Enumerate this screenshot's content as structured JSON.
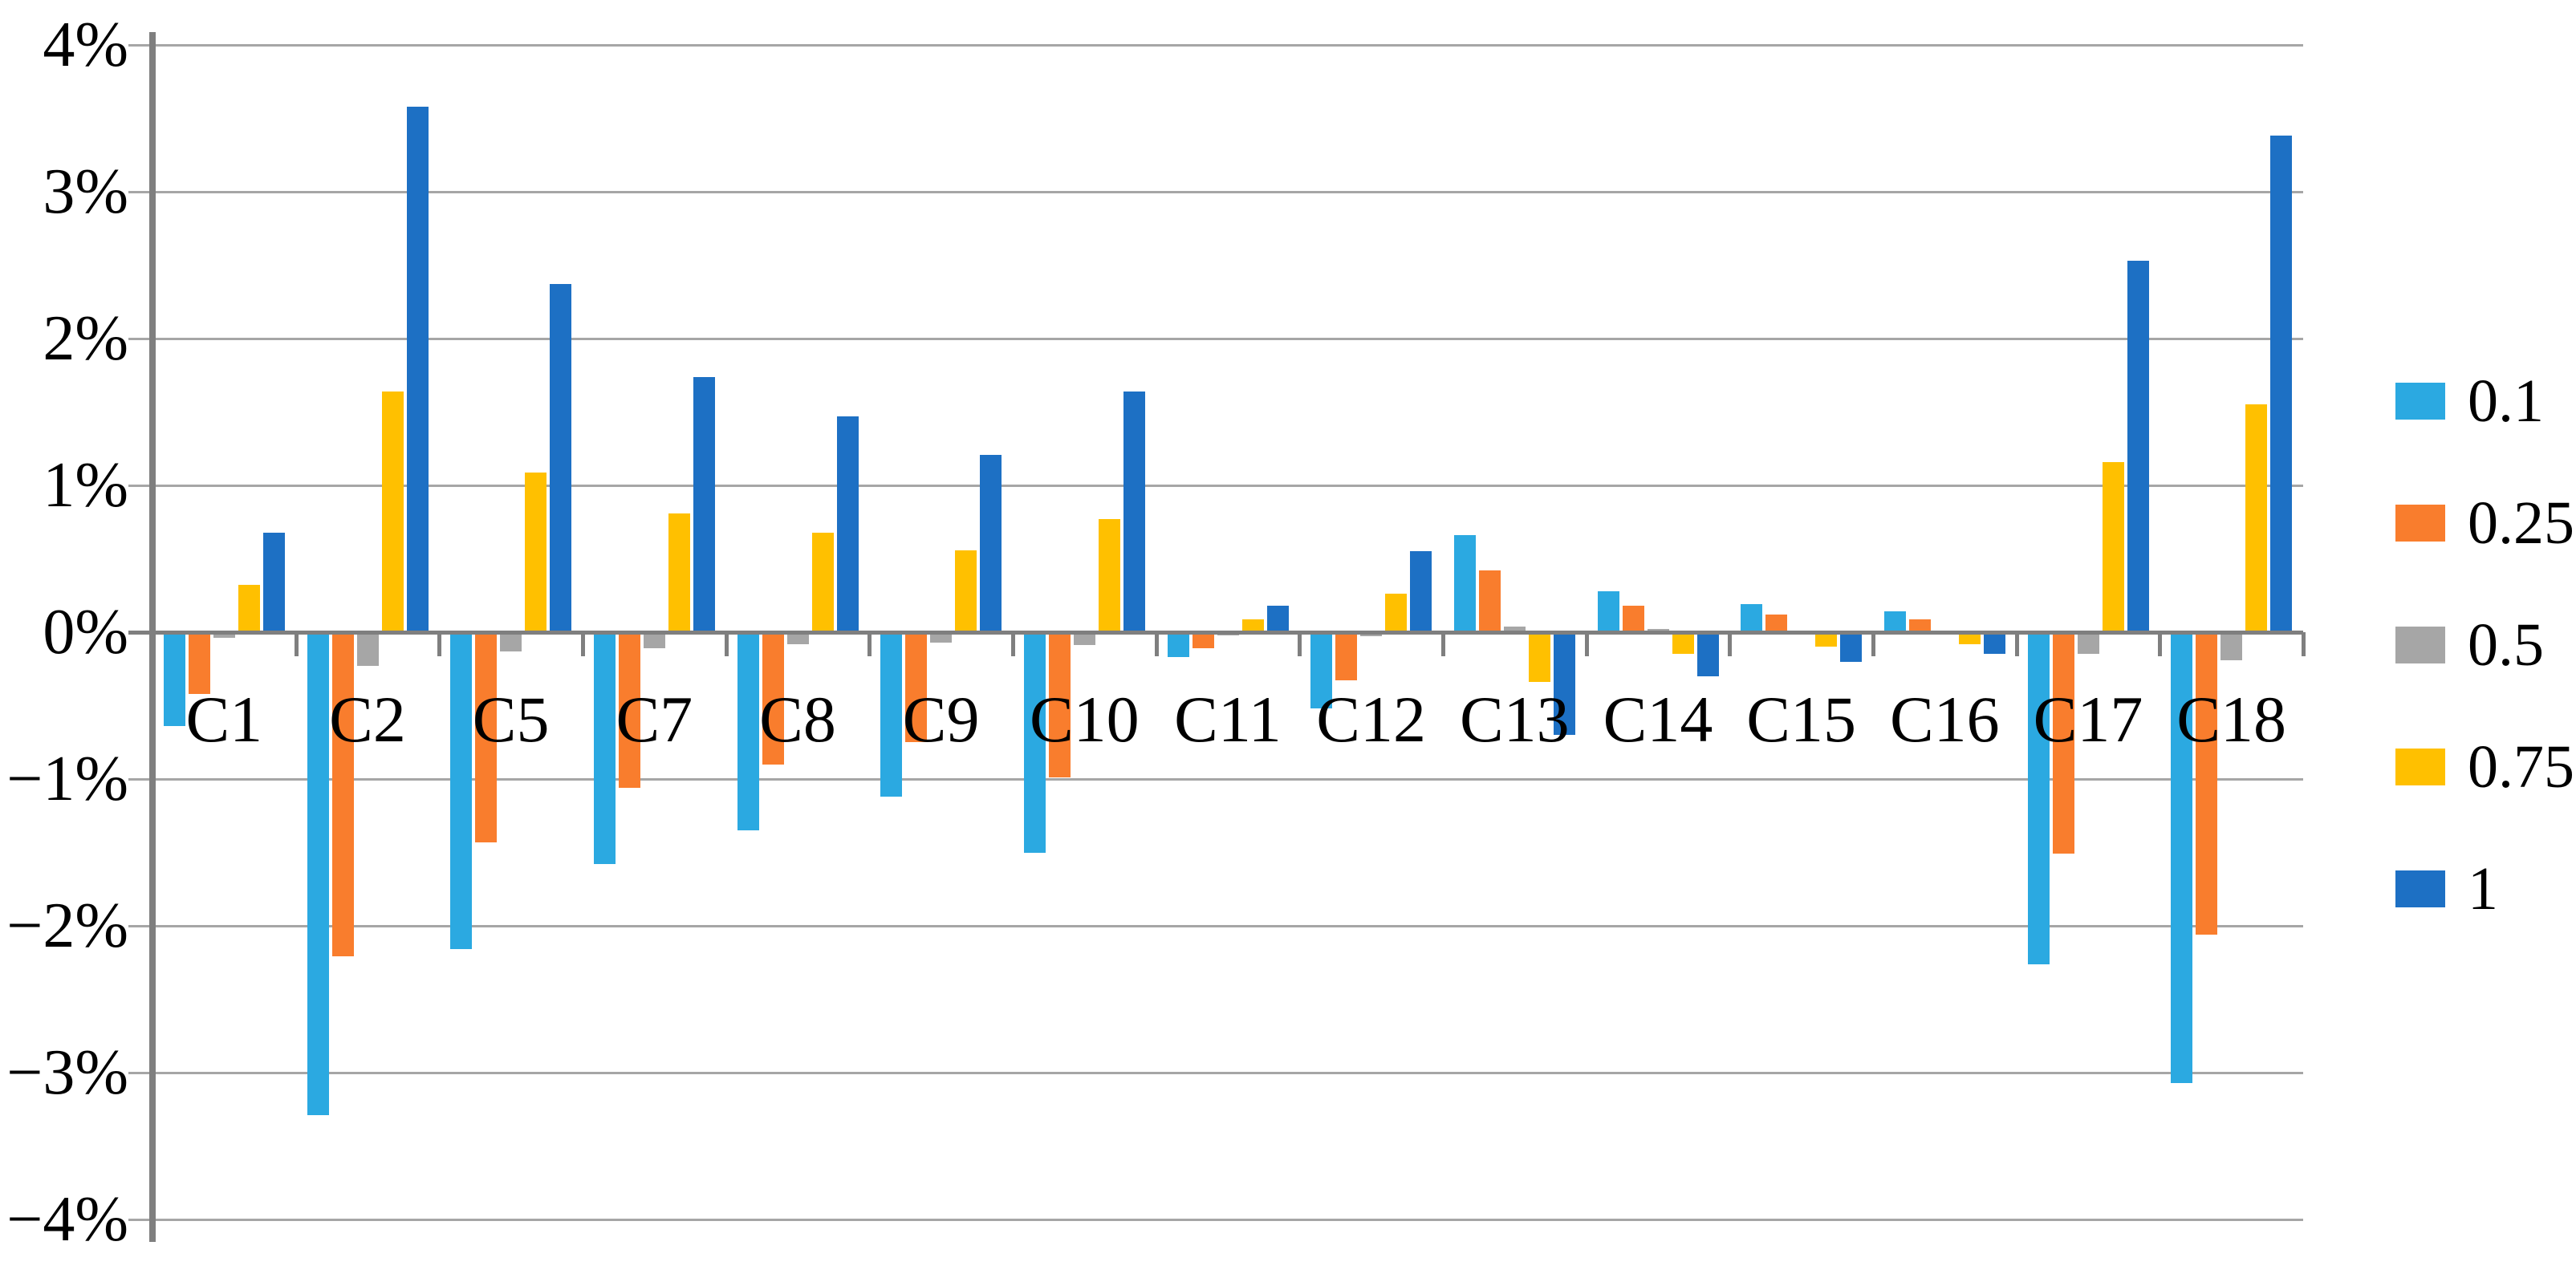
{
  "chart_data": {
    "type": "bar",
    "title": "",
    "xlabel": "",
    "ylabel": "",
    "categories": [
      "C1",
      "C2",
      "C5",
      "C7",
      "C8",
      "C9",
      "C10",
      "C11",
      "C12",
      "C13",
      "C14",
      "C15",
      "C16",
      "C17",
      "C18"
    ],
    "series": [
      {
        "name": "0.1",
        "color": "#2BA9E1",
        "values": [
          -0.64,
          -3.29,
          -2.16,
          -1.58,
          -1.35,
          -1.12,
          -1.5,
          -0.17,
          -0.52,
          0.66,
          0.28,
          0.19,
          0.14,
          -2.26,
          -3.07
        ]
      },
      {
        "name": "0.25",
        "color": "#F97D2D",
        "values": [
          -0.42,
          -2.21,
          -1.43,
          -1.06,
          -0.9,
          -0.75,
          -0.99,
          -0.11,
          -0.33,
          0.42,
          0.18,
          0.12,
          0.09,
          -1.51,
          -2.06
        ]
      },
      {
        "name": "0.5",
        "color": "#A6A6A6",
        "values": [
          -0.04,
          -0.23,
          -0.13,
          -0.11,
          -0.08,
          -0.07,
          -0.09,
          -0.02,
          -0.03,
          0.04,
          0.02,
          0.01,
          0.01,
          -0.15,
          -0.19
        ]
      },
      {
        "name": "0.75",
        "color": "#FFC000",
        "values": [
          0.32,
          1.64,
          1.09,
          0.81,
          0.68,
          0.56,
          0.77,
          0.09,
          0.26,
          -0.34,
          -0.15,
          -0.1,
          -0.08,
          1.16,
          1.55
        ]
      },
      {
        "name": "1",
        "color": "#1D70C4",
        "values": [
          0.68,
          3.58,
          2.37,
          1.74,
          1.47,
          1.21,
          1.64,
          0.18,
          0.55,
          -0.7,
          -0.3,
          -0.2,
          -0.15,
          2.53,
          3.38
        ]
      }
    ],
    "y_tick_labels": [
      "4%",
      "3%",
      "2%",
      "1%",
      "0%",
      "−1%",
      "−2%",
      "−3%",
      "−4%"
    ],
    "ylim": [
      -4,
      4
    ],
    "grid": true,
    "legend_position": "right",
    "legend_labels": [
      "0.1",
      "0.25",
      "0.5",
      "0.75",
      "1"
    ]
  },
  "style_colors": {
    "gridline": "#a6a6a6",
    "axis": "#7f7f7f",
    "background": "#ffffff"
  }
}
